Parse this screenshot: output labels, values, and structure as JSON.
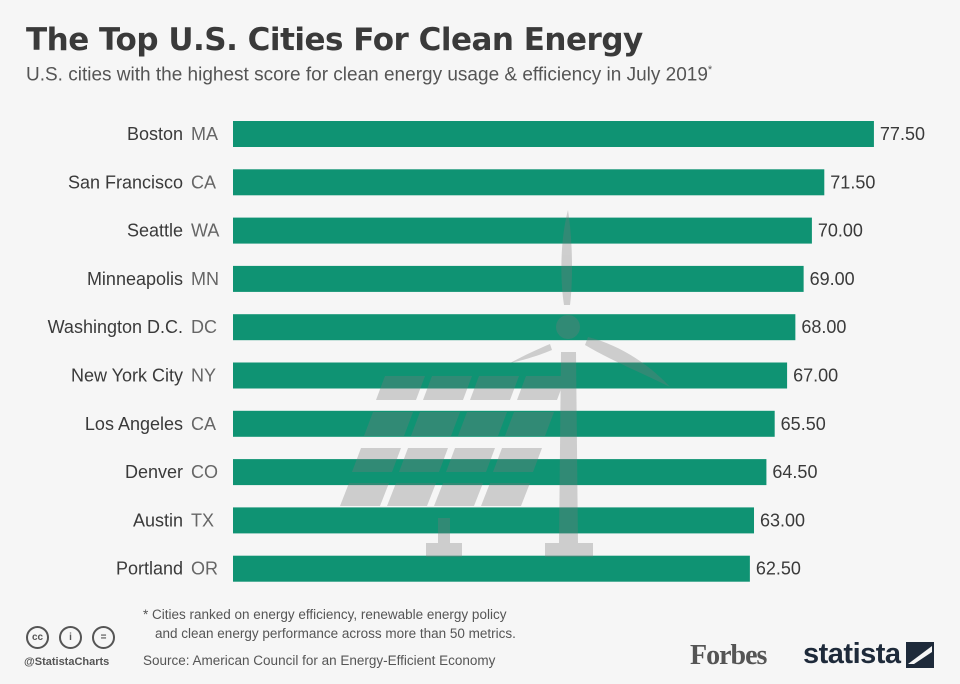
{
  "title": "The Top U.S. Cities For Clean Energy",
  "subtitle": "U.S. cities with the highest score for clean energy usage & efficiency in July 2019",
  "subtitle_mark": "*",
  "colors": {
    "bar": "#0f9373",
    "background": "#f6f6f6",
    "text": "#3a3a3a"
  },
  "chart_data": {
    "type": "bar",
    "orientation": "horizontal",
    "categories": [
      "Boston",
      "San Francisco",
      "Seattle",
      "Minneapolis",
      "Washington D.C.",
      "New York City",
      "Los Angeles",
      "Denver",
      "Austin",
      "Portland"
    ],
    "states": [
      "MA",
      "CA",
      "WA",
      "MN",
      "DC",
      "NY",
      "CA",
      "CO",
      "TX",
      "OR"
    ],
    "values": [
      77.5,
      71.5,
      70.0,
      69.0,
      68.0,
      67.0,
      65.5,
      64.5,
      63.0,
      62.5
    ],
    "value_labels": [
      "77.50",
      "71.50",
      "70.00",
      "69.00",
      "68.00",
      "67.00",
      "65.50",
      "64.50",
      "63.00",
      "62.50"
    ],
    "xlim": [
      0,
      77.5
    ],
    "grid": false
  },
  "footer": {
    "note_line1": "* Cities ranked on energy efficiency, renewable energy policy",
    "note_line2": "and clean energy performance across more than 50 metrics.",
    "source": "Source: American Council for an Energy-Efficient Economy",
    "handle": "@StatistaCharts",
    "license_icons": [
      "cc",
      "by",
      "nd"
    ],
    "logo_forbes": "Forbes",
    "logo_statista": "statista"
  }
}
